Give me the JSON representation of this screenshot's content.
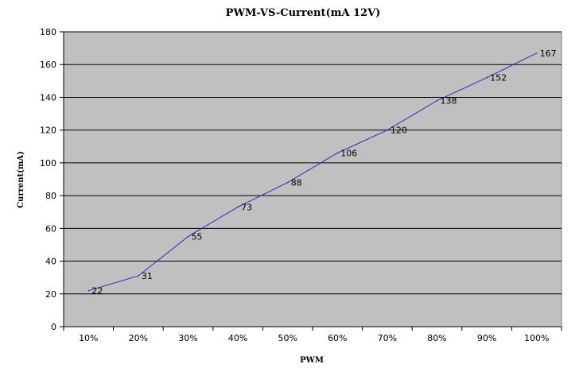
{
  "chart_data": {
    "type": "line",
    "title": "PWM-VS-Current(mA 12V)",
    "xlabel": "PWM",
    "ylabel": "Current(mA)",
    "categories": [
      "10%",
      "20%",
      "30%",
      "40%",
      "50%",
      "60%",
      "70%",
      "80%",
      "90%",
      "100%"
    ],
    "series": [
      {
        "values": [
          22,
          31,
          55,
          73,
          88,
          106,
          120,
          138,
          152,
          167
        ]
      }
    ],
    "data_labels": [
      "22",
      "31",
      "55",
      "73",
      "88",
      "106",
      "120",
      "138",
      "152",
      "167"
    ],
    "ylim": [
      0,
      180
    ],
    "yticks": [
      "0",
      "20",
      "40",
      "60",
      "80",
      "100",
      "120",
      "140",
      "160",
      "180"
    ],
    "grid": true,
    "legend": "none",
    "colors": {
      "line": "#2b2bb3",
      "plot_bg": "#c0c0c0",
      "grid": "#000000"
    }
  }
}
